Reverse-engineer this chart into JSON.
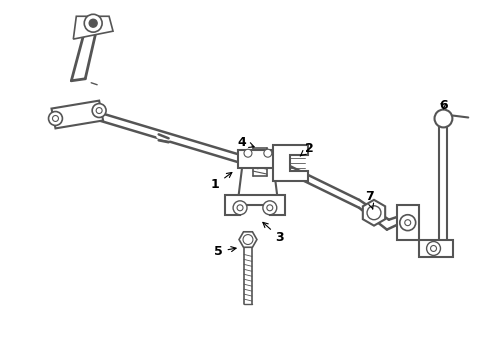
{
  "bg_color": "#ffffff",
  "line_color": "#555555",
  "label_color": "#000000",
  "fig_width": 4.9,
  "fig_height": 3.6,
  "dpi": 100,
  "bar_lw": 2.0,
  "thin_lw": 1.0
}
